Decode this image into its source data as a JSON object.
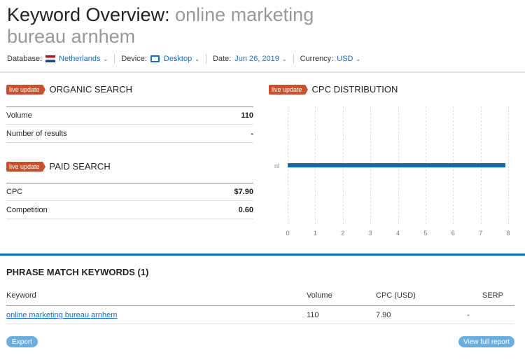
{
  "header": {
    "title_prefix": "Keyword Overview:",
    "keyword": "online marketing bureau arnhem"
  },
  "filters": {
    "database_label": "Database:",
    "database": "Netherlands",
    "device_label": "Device:",
    "device": "Desktop",
    "date_label": "Date:",
    "date": "Jun 26, 2019",
    "currency_label": "Currency:",
    "currency": "USD"
  },
  "badge": "live update",
  "organic": {
    "title": "ORGANIC SEARCH",
    "rows": [
      {
        "label": "Volume",
        "value": "110"
      },
      {
        "label": "Number of results",
        "value": "-"
      }
    ]
  },
  "paid": {
    "title": "PAID SEARCH",
    "rows": [
      {
        "label": "CPC",
        "value": "$7.90"
      },
      {
        "label": "Competition",
        "value": "0.60"
      }
    ]
  },
  "cpc": {
    "title": "CPC DISTRIBUTION"
  },
  "chart_data": {
    "type": "bar",
    "orientation": "horizontal",
    "categories": [
      "nl"
    ],
    "values": [
      7.9
    ],
    "xlim": [
      0,
      8
    ],
    "xticks": [
      "0",
      "1",
      "2",
      "3",
      "4",
      "5",
      "6",
      "7",
      "8"
    ],
    "grid": true,
    "color": "#0f6ab4"
  },
  "phrase": {
    "title": "PHRASE MATCH KEYWORDS (1)",
    "columns": [
      "Keyword",
      "Volume",
      "CPC (USD)",
      "SERP"
    ],
    "rows": [
      {
        "keyword": "online marketing bureau arnhem",
        "volume": "110",
        "cpc": "7.90",
        "serp": "-"
      }
    ]
  },
  "buttons": {
    "export": "Export",
    "view_full": "View full report"
  }
}
